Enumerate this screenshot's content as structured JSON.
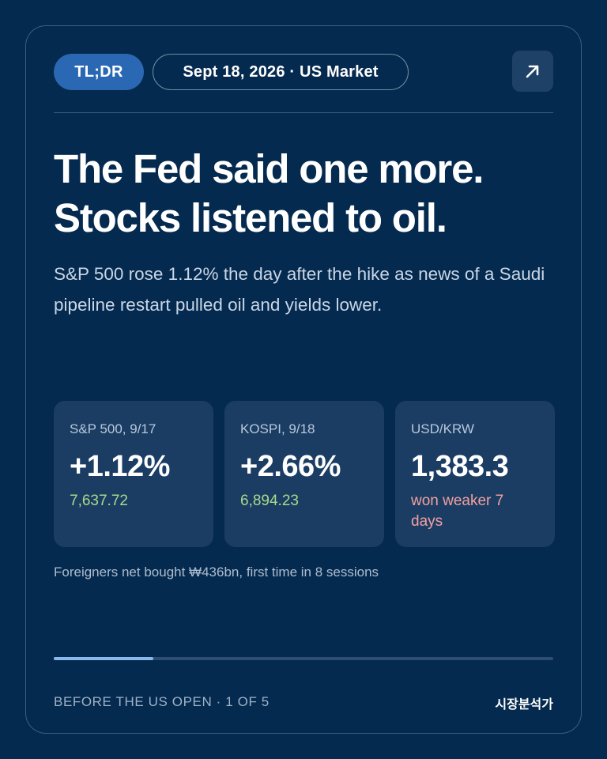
{
  "header": {
    "tag_label": "TL;DR",
    "date_label": "Sept 18, 2026 · US Market",
    "open_icon": "arrow-up-right-icon"
  },
  "headline": {
    "line1": "The Fed said one more.",
    "line2": "Stocks listened to oil."
  },
  "subtitle": "S&P 500 rose 1.12% the day after the hike as news of a Saudi pipeline restart pulled oil and yields lower.",
  "stats": [
    {
      "label": "S&P 500, 9/17",
      "value": "+1.12%",
      "note": "7,637.72",
      "note_color": "#a9d98b"
    },
    {
      "label": "KOSPI, 9/18",
      "value": "+2.66%",
      "note": "6,894.23",
      "note_color": "#a9d98b"
    },
    {
      "label": "USD/KRW",
      "value": "1,383.3",
      "note": "won weaker 7 days",
      "note_color": "#f2a0a0"
    }
  ],
  "footnote": "Foreigners net bought ₩436bn, first time in 8 sessions",
  "progress": {
    "current": 1,
    "total": 5,
    "fraction": 0.2
  },
  "footer": {
    "left_label": "BEFORE THE US OPEN · 1 OF 5",
    "brand": "시장분석가"
  },
  "colors": {
    "background": "#052a4f",
    "accent": "#2a68b3",
    "positive": "#a9d98b",
    "negative": "#f2a0a0"
  }
}
